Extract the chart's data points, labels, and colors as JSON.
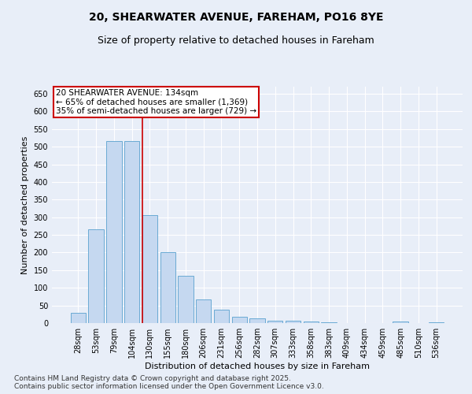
{
  "title": "20, SHEARWATER AVENUE, FAREHAM, PO16 8YE",
  "subtitle": "Size of property relative to detached houses in Fareham",
  "xlabel": "Distribution of detached houses by size in Fareham",
  "ylabel": "Number of detached properties",
  "categories": [
    "28sqm",
    "53sqm",
    "79sqm",
    "104sqm",
    "130sqm",
    "155sqm",
    "180sqm",
    "206sqm",
    "231sqm",
    "256sqm",
    "282sqm",
    "307sqm",
    "333sqm",
    "358sqm",
    "383sqm",
    "409sqm",
    "434sqm",
    "459sqm",
    "485sqm",
    "510sqm",
    "536sqm"
  ],
  "values": [
    30,
    265,
    515,
    515,
    305,
    200,
    133,
    67,
    38,
    18,
    13,
    7,
    6,
    4,
    2,
    1,
    1,
    0,
    4,
    0,
    3
  ],
  "bar_color": "#c5d8f0",
  "bar_edge_color": "#6aaad4",
  "vline_x": 4.0,
  "vline_color": "#cc0000",
  "vline_label": "20 SHEARWATER AVENUE: 134sqm",
  "annotation_line1": "← 65% of detached houses are smaller (1,369)",
  "annotation_line2": "35% of semi-detached houses are larger (729) →",
  "box_color": "#cc0000",
  "footnote1": "Contains HM Land Registry data © Crown copyright and database right 2025.",
  "footnote2": "Contains public sector information licensed under the Open Government Licence v3.0.",
  "ylim": [
    0,
    670
  ],
  "yticks": [
    0,
    50,
    100,
    150,
    200,
    250,
    300,
    350,
    400,
    450,
    500,
    550,
    600,
    650
  ],
  "background_color": "#e8eef8",
  "grid_color": "#ffffff",
  "title_fontsize": 10,
  "subtitle_fontsize": 9,
  "axis_label_fontsize": 8,
  "tick_fontsize": 7,
  "annotation_fontsize": 7.5,
  "footnote_fontsize": 6.5
}
